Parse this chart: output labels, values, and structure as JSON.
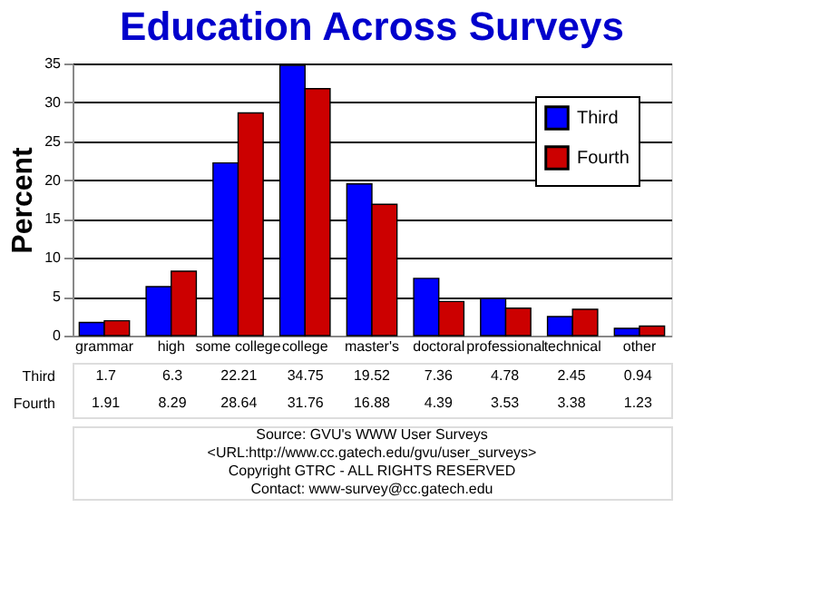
{
  "chart_data": {
    "type": "bar",
    "title": "Education Across Surveys",
    "ylabel": "Percent",
    "categories": [
      "grammar",
      "high",
      "some college",
      "college",
      "master's",
      "doctoral",
      "professional",
      "technical",
      "other"
    ],
    "series": [
      {
        "name": "Third",
        "color": "#0000ff",
        "values": [
          1.7,
          6.3,
          22.21,
          34.75,
          19.52,
          7.36,
          4.78,
          2.45,
          0.94
        ]
      },
      {
        "name": "Fourth",
        "color": "#cc0000",
        "values": [
          1.91,
          8.29,
          28.64,
          31.76,
          16.88,
          4.39,
          3.53,
          3.38,
          1.23
        ]
      }
    ],
    "ylim": [
      0,
      35
    ],
    "yticks": [
      0,
      5,
      10,
      15,
      20,
      25,
      30,
      35
    ],
    "grid": "y",
    "legend": "top right",
    "data_labels": true,
    "annotations": [
      "Source: GVU's WWW User Surveys",
      "<URL:http://www.cc.gatech.edu/gvu/user_surveys>",
      "Copyright GTRC -  ALL RIGHTS RESERVED",
      "Contact: www-survey@cc.gatech.edu"
    ]
  }
}
